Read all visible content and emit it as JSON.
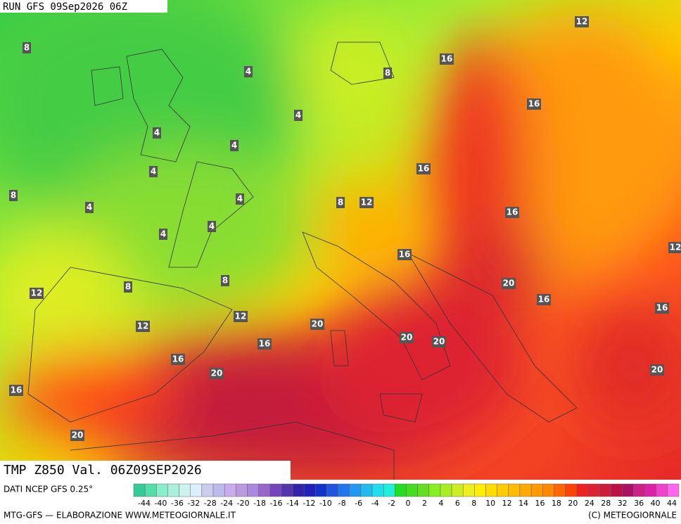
{
  "header": {
    "run": "RUN GFS 09Sep2026 06Z"
  },
  "map": {
    "labels": [
      "8",
      "4",
      "16",
      "12",
      "8",
      "4",
      "16",
      "4",
      "4",
      "4",
      "16",
      "8",
      "4",
      "4",
      "8",
      "12",
      "16",
      "4",
      "4",
      "12",
      "16",
      "8",
      "8",
      "12",
      "20",
      "16",
      "16",
      "12",
      "20",
      "12",
      "20",
      "20",
      "16",
      "16",
      "20",
      "20",
      "16",
      "20"
    ]
  },
  "footer": {
    "title": "TMP Z850 Val. 06Z09SEP2026",
    "source": "DATI NCEP GFS 0.25°",
    "scale": [
      "-44",
      "-40",
      "-36",
      "-32",
      "-28",
      "-24",
      "-20",
      "-18",
      "-16",
      "-14",
      "-12",
      "-10",
      "-8",
      "-6",
      "-4",
      "-2",
      "0",
      "2",
      "4",
      "6",
      "8",
      "10",
      "12",
      "14",
      "16",
      "18",
      "20",
      "24",
      "28",
      "32",
      "36",
      "40",
      "44"
    ],
    "credit": "MTG-GFS — ELABORAZIONE WWW.METEOGIORNALE.IT",
    "copyright": "(C) METEOGIORNALE"
  }
}
